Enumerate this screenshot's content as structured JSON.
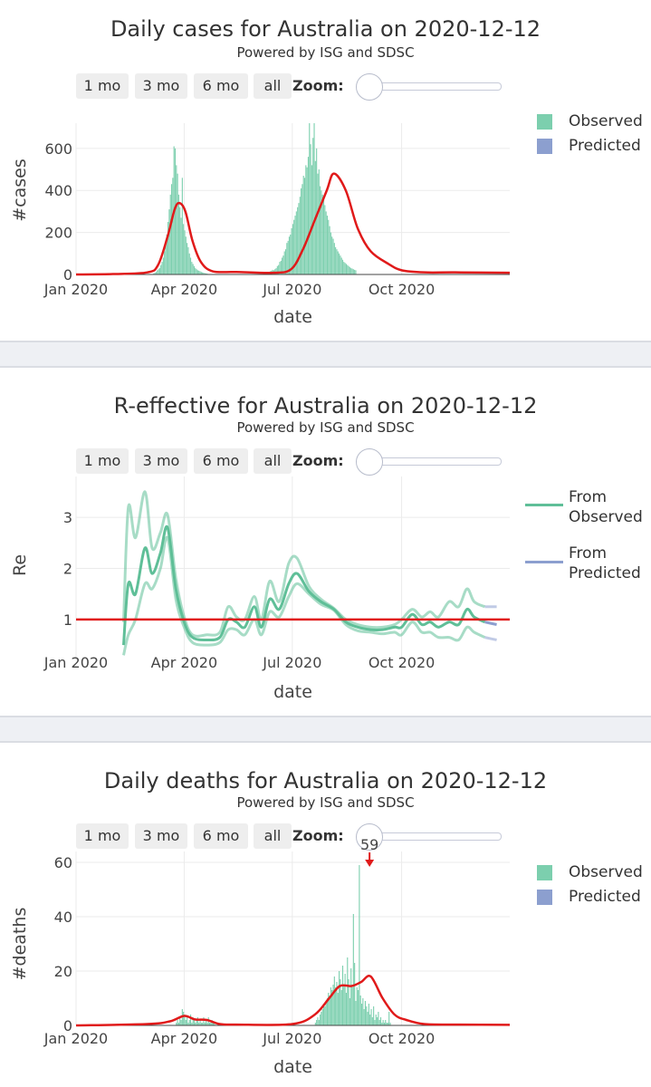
{
  "buttons": [
    "1 mo",
    "3 mo",
    "6 mo",
    "all"
  ],
  "zoom_label": "Zoom:",
  "subtitle": "Powered by ISG and SDSC",
  "colors": {
    "observed": "#7ccfae",
    "observed_line": "#5fbf98",
    "predicted": "#8c9fcf",
    "fit": "#e01a1a"
  },
  "chart_data": [
    {
      "type": "bar",
      "title": "Daily cases for Australia on 2020-12-12",
      "xlabel": "date",
      "ylabel": "#cases",
      "x_ticks": [
        "Jan 2020",
        "Apr 2020",
        "Jul 2020",
        "Oct 2020"
      ],
      "y_ticks": [
        0,
        200,
        400,
        600
      ],
      "ylim": [
        0,
        720
      ],
      "xlim": [
        "2020-01-01",
        "2020-12-31"
      ],
      "legend": [
        "Observed",
        "Predicted"
      ],
      "legend_position": "right",
      "series": [
        {
          "name": "Observed",
          "kind": "bars",
          "values_by_date": {
            "start": "2020-03-05",
            "step_days": 1,
            "values": [
              2,
              5,
              8,
              12,
              20,
              25,
              30,
              45,
              60,
              80,
              110,
              140,
              190,
              250,
              310,
              380,
              430,
              460,
              610,
              600,
              520,
              480,
              380,
              320,
              270,
              460,
              240,
              210,
              180,
              150,
              130,
              100,
              80,
              60,
              50,
              40,
              30,
              25,
              20,
              18,
              15,
              12,
              10,
              8,
              6,
              5,
              4
            ]
          }
        },
        {
          "name": "Observed",
          "kind": "bars",
          "values_by_date": {
            "start": "2020-06-10",
            "step_days": 1,
            "values": [
              10,
              12,
              15,
              18,
              22,
              20,
              25,
              30,
              40,
              45,
              60,
              65,
              80,
              90,
              110,
              120,
              150,
              160,
              180,
              190,
              220,
              240,
              260,
              280,
              300,
              320,
              340,
              370,
              410,
              430,
              470,
              460,
              520,
              510,
              560,
              720,
              620,
              520,
              650,
              720,
              540,
              600,
              480,
              500,
              420,
              400,
              380,
              360,
              330,
              300,
              280,
              260,
              230,
              200,
              180,
              170,
              150,
              130,
              120,
              110,
              100,
              90,
              80,
              70,
              60,
              55,
              50,
              45,
              40,
              35,
              30,
              28,
              25,
              22,
              20
            ]
          }
        },
        {
          "name": "Fit",
          "kind": "line",
          "x": [
            "2020-01-01",
            "2020-02-01",
            "2020-03-01",
            "2020-03-10",
            "2020-03-18",
            "2020-03-24",
            "2020-03-28",
            "2020-04-02",
            "2020-04-08",
            "2020-04-15",
            "2020-04-25",
            "2020-05-15",
            "2020-06-15",
            "2020-06-30",
            "2020-07-10",
            "2020-07-20",
            "2020-07-30",
            "2020-08-05",
            "2020-08-15",
            "2020-08-25",
            "2020-09-05",
            "2020-09-20",
            "2020-10-01",
            "2020-10-20",
            "2020-11-15",
            "2020-12-31"
          ],
          "y": [
            0,
            2,
            10,
            45,
            180,
            310,
            340,
            300,
            160,
            60,
            15,
            12,
            8,
            25,
            120,
            260,
            400,
            480,
            400,
            220,
            110,
            50,
            20,
            10,
            10,
            8
          ]
        }
      ]
    },
    {
      "type": "line",
      "title": "R-effective for Australia on 2020-12-12",
      "xlabel": "date",
      "ylabel": "Re",
      "x_ticks": [
        "Jan 2020",
        "Apr 2020",
        "Jul 2020",
        "Oct 2020"
      ],
      "y_ticks": [
        1,
        2,
        3
      ],
      "ylim": [
        0.2,
        3.8
      ],
      "xlim": [
        "2020-01-01",
        "2020-12-31"
      ],
      "legend": [
        "From Observed",
        "From Predicted"
      ],
      "legend_position": "right",
      "reference_line": 1,
      "series": [
        {
          "name": "From Observed",
          "kind": "mean",
          "x": [
            "2020-02-10",
            "2020-02-14",
            "2020-02-20",
            "2020-02-28",
            "2020-03-05",
            "2020-03-12",
            "2020-03-18",
            "2020-03-25",
            "2020-04-01",
            "2020-04-08",
            "2020-04-20",
            "2020-05-01",
            "2020-05-08",
            "2020-05-15",
            "2020-05-22",
            "2020-05-30",
            "2020-06-05",
            "2020-06-12",
            "2020-06-20",
            "2020-06-28",
            "2020-07-05",
            "2020-07-15",
            "2020-07-25",
            "2020-08-05",
            "2020-08-15",
            "2020-08-25",
            "2020-09-05",
            "2020-09-15",
            "2020-09-25",
            "2020-10-01",
            "2020-10-10",
            "2020-10-18",
            "2020-10-25",
            "2020-11-01",
            "2020-11-10",
            "2020-11-18",
            "2020-11-25",
            "2020-12-01",
            "2020-12-10"
          ],
          "y": [
            0.5,
            1.7,
            1.5,
            2.4,
            1.9,
            2.3,
            2.8,
            1.6,
            0.95,
            0.65,
            0.6,
            0.65,
            1.0,
            0.95,
            0.85,
            1.25,
            0.85,
            1.4,
            1.2,
            1.7,
            1.9,
            1.55,
            1.35,
            1.2,
            0.95,
            0.85,
            0.8,
            0.8,
            0.85,
            0.85,
            1.1,
            0.9,
            0.95,
            0.85,
            0.95,
            0.9,
            1.2,
            1.05,
            0.95
          ]
        },
        {
          "name": "From Observed",
          "kind": "upper",
          "x": [
            "2020-02-10",
            "2020-02-14",
            "2020-02-20",
            "2020-02-28",
            "2020-03-05",
            "2020-03-12",
            "2020-03-18",
            "2020-03-25",
            "2020-04-01",
            "2020-04-08",
            "2020-04-20",
            "2020-05-01",
            "2020-05-08",
            "2020-05-15",
            "2020-05-22",
            "2020-05-30",
            "2020-06-05",
            "2020-06-12",
            "2020-06-20",
            "2020-06-28",
            "2020-07-05",
            "2020-07-15",
            "2020-07-25",
            "2020-08-05",
            "2020-08-15",
            "2020-08-25",
            "2020-09-05",
            "2020-09-15",
            "2020-09-25",
            "2020-10-01",
            "2020-10-10",
            "2020-10-18",
            "2020-10-25",
            "2020-11-01",
            "2020-11-10",
            "2020-11-18",
            "2020-11-25",
            "2020-12-01",
            "2020-12-10"
          ],
          "y": [
            0.95,
            3.2,
            2.6,
            3.5,
            2.4,
            2.7,
            3.05,
            1.8,
            1.05,
            0.7,
            0.7,
            0.75,
            1.25,
            1.05,
            1.0,
            1.45,
            1.0,
            1.75,
            1.35,
            2.1,
            2.2,
            1.65,
            1.4,
            1.22,
            1.0,
            0.9,
            0.85,
            0.85,
            0.9,
            1.0,
            1.2,
            1.05,
            1.15,
            1.05,
            1.35,
            1.25,
            1.6,
            1.35,
            1.25
          ]
        },
        {
          "name": "From Observed",
          "kind": "lower",
          "x": [
            "2020-02-10",
            "2020-02-14",
            "2020-02-20",
            "2020-02-28",
            "2020-03-05",
            "2020-03-12",
            "2020-03-18",
            "2020-03-25",
            "2020-04-01",
            "2020-04-08",
            "2020-04-20",
            "2020-05-01",
            "2020-05-08",
            "2020-05-15",
            "2020-05-22",
            "2020-05-30",
            "2020-06-05",
            "2020-06-12",
            "2020-06-20",
            "2020-06-28",
            "2020-07-05",
            "2020-07-15",
            "2020-07-25",
            "2020-08-05",
            "2020-08-15",
            "2020-08-25",
            "2020-09-05",
            "2020-09-15",
            "2020-09-25",
            "2020-10-01",
            "2020-10-10",
            "2020-10-18",
            "2020-10-25",
            "2020-11-01",
            "2020-11-10",
            "2020-11-18",
            "2020-11-25",
            "2020-12-01",
            "2020-12-10"
          ],
          "y": [
            0.3,
            0.7,
            1.0,
            1.7,
            1.6,
            2.0,
            2.6,
            1.4,
            0.85,
            0.55,
            0.5,
            0.55,
            0.8,
            0.8,
            0.7,
            1.0,
            0.7,
            1.15,
            1.05,
            1.45,
            1.7,
            1.5,
            1.3,
            1.18,
            0.9,
            0.78,
            0.75,
            0.72,
            0.75,
            0.7,
            0.95,
            0.75,
            0.75,
            0.65,
            0.65,
            0.6,
            0.85,
            0.75,
            0.65
          ]
        },
        {
          "name": "From Predicted",
          "kind": "mean",
          "x": [
            "2020-12-10",
            "2020-12-20"
          ],
          "y": [
            0.95,
            0.9
          ]
        },
        {
          "name": "From Predicted",
          "kind": "upper",
          "x": [
            "2020-12-10",
            "2020-12-20"
          ],
          "y": [
            1.25,
            1.25
          ]
        },
        {
          "name": "From Predicted",
          "kind": "lower",
          "x": [
            "2020-12-10",
            "2020-12-20"
          ],
          "y": [
            0.65,
            0.6
          ]
        }
      ]
    },
    {
      "type": "bar",
      "title": "Daily deaths for Australia on 2020-12-12",
      "xlabel": "date",
      "ylabel": "#deaths",
      "x_ticks": [
        "Jan 2020",
        "Apr 2020",
        "Jul 2020",
        "Oct 2020"
      ],
      "y_ticks": [
        0,
        20,
        40,
        60
      ],
      "ylim": [
        0,
        64
      ],
      "xlim": [
        "2020-01-01",
        "2020-12-31"
      ],
      "legend": [
        "Observed",
        "Predicted"
      ],
      "legend_position": "right",
      "annotation": {
        "text": "59",
        "x": "2020-09-04",
        "y": 59
      },
      "series": [
        {
          "name": "Observed",
          "kind": "bars",
          "values_by_date": {
            "start": "2020-03-25",
            "step_days": 1,
            "values": [
              1,
              2,
              1,
              3,
              2,
              6,
              5,
              4,
              2,
              3,
              1,
              2,
              4,
              1,
              3,
              2,
              1,
              2,
              3,
              1,
              2,
              1,
              1,
              3,
              1,
              2,
              1,
              3,
              1,
              1,
              2,
              1,
              1
            ]
          }
        },
        {
          "name": "Observed",
          "kind": "bars",
          "values_by_date": {
            "start": "2020-07-20",
            "step_days": 1,
            "values": [
              1,
              2,
              3,
              2,
              4,
              5,
              6,
              8,
              7,
              9,
              10,
              12,
              11,
              14,
              13,
              15,
              18,
              14,
              16,
              12,
              20,
              17,
              13,
              22,
              15,
              19,
              12,
              25,
              17,
              10,
              21,
              14,
              41,
              23,
              9,
              14,
              13,
              59,
              11,
              8,
              10,
              6,
              9,
              7,
              5,
              8,
              4,
              6,
              3,
              7,
              2,
              4,
              3,
              5,
              2,
              3,
              1,
              2,
              1,
              2,
              1,
              1,
              5,
              1
            ]
          }
        },
        {
          "name": "Fit",
          "kind": "line",
          "x": [
            "2020-01-01",
            "2020-03-01",
            "2020-03-20",
            "2020-04-01",
            "2020-04-10",
            "2020-04-20",
            "2020-05-01",
            "2020-05-15",
            "2020-07-01",
            "2020-07-20",
            "2020-08-01",
            "2020-08-10",
            "2020-08-20",
            "2020-08-28",
            "2020-09-05",
            "2020-09-15",
            "2020-09-25",
            "2020-10-05",
            "2020-10-20",
            "2020-11-15",
            "2020-12-31"
          ],
          "y": [
            0,
            0.5,
            1.5,
            3.5,
            2.2,
            2.0,
            0.5,
            0.3,
            0.5,
            4,
            10,
            14.5,
            14.5,
            16,
            18,
            10,
            4,
            2,
            0.5,
            0.3,
            0.2
          ]
        }
      ]
    }
  ]
}
